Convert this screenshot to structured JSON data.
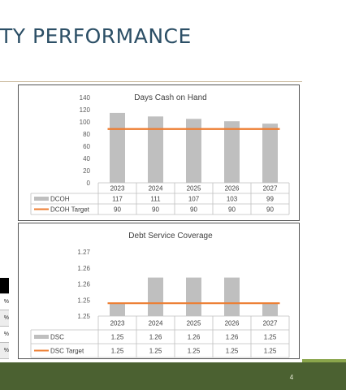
{
  "slide": {
    "title": "TY PERFORMANCE",
    "page_number": "4"
  },
  "partial_table": {
    "cells": [
      "%",
      "%",
      "%",
      "%",
      "%"
    ]
  },
  "colors": {
    "bar": "#bfbfbf",
    "target_line": "#ed7d31",
    "title": "#2c4f66",
    "footer": "#4b6131",
    "footer_accent": "#8aa54b"
  },
  "chart_data": [
    {
      "type": "bar",
      "title": "Days Cash on Hand",
      "categories": [
        "2023",
        "2024",
        "2025",
        "2026",
        "2027"
      ],
      "ylim": [
        0,
        140
      ],
      "y_ticks": [
        "0",
        "20",
        "40",
        "60",
        "80",
        "100",
        "120",
        "140"
      ],
      "series": [
        {
          "name": "DCOH",
          "kind": "bar",
          "values": [
            117,
            111,
            107,
            103,
            99
          ],
          "labels": [
            "117",
            "111",
            "107",
            "103",
            "99"
          ]
        },
        {
          "name": "DCOH Target",
          "kind": "line",
          "values": [
            90,
            90,
            90,
            90,
            90
          ],
          "labels": [
            "90",
            "90",
            "90",
            "90",
            "90"
          ]
        }
      ],
      "legend": "data-table",
      "grid": false
    },
    {
      "type": "bar",
      "title": "Debt Service Coverage",
      "categories": [
        "2023",
        "2024",
        "2025",
        "2026",
        "2027"
      ],
      "ylim": [
        1.245,
        1.27
      ],
      "y_ticks": [
        "1.25",
        "1.25",
        "1.26",
        "1.26",
        "1.27"
      ],
      "series": [
        {
          "name": "DSC",
          "kind": "bar",
          "values": [
            1.25,
            1.26,
            1.26,
            1.26,
            1.25
          ],
          "labels": [
            "1.25",
            "1.26",
            "1.26",
            "1.26",
            "1.25"
          ]
        },
        {
          "name": "DSC Target",
          "kind": "line",
          "values": [
            1.25,
            1.25,
            1.25,
            1.25,
            1.25
          ],
          "labels": [
            "1.25",
            "1.25",
            "1.25",
            "1.25",
            "1.25"
          ]
        }
      ],
      "legend": "data-table",
      "grid": false
    }
  ]
}
